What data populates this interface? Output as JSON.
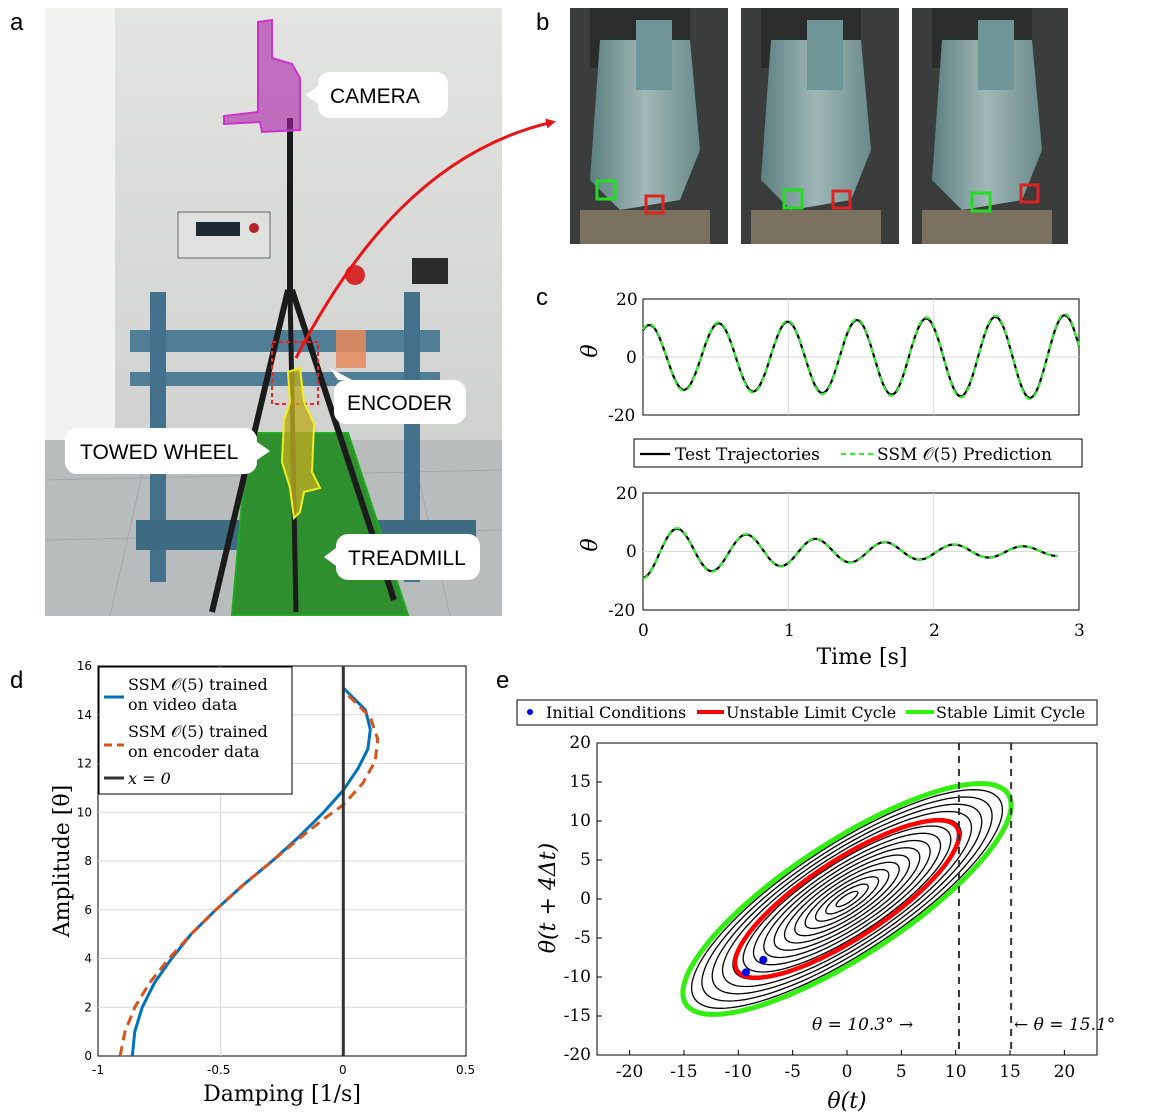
{
  "panels": {
    "a": "a",
    "b": "b",
    "c": "c",
    "d": "d",
    "e": "e"
  },
  "photo_labels": {
    "camera": "CAMERA",
    "encoder": "ENCODER",
    "towed_wheel": "TOWED WHEEL",
    "treadmill": "TREADMILL"
  },
  "colors": {
    "black": "#000000",
    "green_dash": "#33ee33",
    "blue": "#0072bd",
    "orange": "#d95319",
    "red": "#ff0000",
    "green": "#33ee11",
    "ic_blue": "#0000ee",
    "grid": "#d9d9d9",
    "camera_highlight": "#aa22aa",
    "wheel_highlight": "#dddd22",
    "treadmill_highlight": "#22aa22"
  },
  "chart_data": [
    {
      "id": "c-top",
      "type": "line",
      "ylabel": "θ",
      "xlabel": "",
      "xlim": [
        0,
        3
      ],
      "ylim": [
        -20,
        20
      ],
      "yticks": [
        "20",
        "0",
        "-20"
      ],
      "grid": true,
      "series": [
        {
          "name": "Test Trajectories",
          "style": "solid",
          "signal": {
            "a0": 11.0,
            "a1": 14.5,
            "freq": 2.1,
            "phase": 1.0
          }
        },
        {
          "name": "SSM 𝒪(5) Prediction",
          "style": "dashed",
          "signal": {
            "a0": 11.0,
            "a1": 14.5,
            "freq": 2.1,
            "phase": 1.0
          }
        }
      ]
    },
    {
      "id": "c-bottom",
      "type": "line",
      "ylabel": "θ",
      "xlabel": "Time [s]",
      "xlim": [
        0,
        3
      ],
      "ylim": [
        -20,
        20
      ],
      "xticks": [
        "0",
        "1",
        "2",
        "3"
      ],
      "yticks": [
        "20",
        "0",
        "-20"
      ],
      "grid": true,
      "series": [
        {
          "name": "Test Trajectories",
          "style": "solid",
          "signal": {
            "a0": 9.0,
            "decay": 0.62,
            "freq": 2.1,
            "phase": -1.5708,
            "t_end": 2.85
          }
        },
        {
          "name": "SSM 𝒪(5) Prediction",
          "style": "dashed",
          "signal": {
            "a0": 9.0,
            "decay": 0.62,
            "freq": 2.1,
            "phase": -1.5708,
            "t_end": 2.85
          }
        }
      ]
    },
    {
      "id": "d",
      "type": "line",
      "xlabel": "Damping [1/s]",
      "ylabel": "Amplitude [θ]",
      "xlim": [
        -1,
        0.5
      ],
      "ylim": [
        0,
        16
      ],
      "xticks": [
        "-1",
        "-0.5",
        "0",
        "0.5"
      ],
      "yticks": [
        "0",
        "2",
        "4",
        "6",
        "8",
        "10",
        "12",
        "14",
        "16"
      ],
      "grid": true,
      "legend": [
        {
          "line1": "SSM 𝒪(5) trained",
          "line2": "on video data"
        },
        {
          "line1": "SSM 𝒪(5) trained",
          "line2": "on encoder data"
        },
        {
          "line1": "x = 0",
          "line2": ""
        }
      ],
      "series": [
        {
          "name": "SSM 𝒪(5) trained on video data",
          "x": [
            -0.86,
            -0.85,
            -0.82,
            -0.77,
            -0.7,
            -0.62,
            -0.52,
            -0.41,
            -0.29,
            -0.18,
            -0.08,
            0.0,
            0.06,
            0.1,
            0.11,
            0.09,
            0.0
          ],
          "y": [
            0,
            1,
            2,
            3,
            4,
            5,
            6,
            7,
            8,
            9,
            10,
            10.9,
            11.8,
            12.6,
            13.4,
            14.2,
            15.1
          ]
        },
        {
          "name": "SSM 𝒪(5) trained on encoder data",
          "x": [
            -0.91,
            -0.89,
            -0.85,
            -0.79,
            -0.71,
            -0.62,
            -0.52,
            -0.41,
            -0.29,
            -0.17,
            -0.07,
            0.0,
            0.08,
            0.13,
            0.14,
            0.11,
            0.02
          ],
          "y": [
            0,
            1,
            2,
            3,
            4,
            5,
            6,
            7,
            8,
            9,
            9.8,
            10.3,
            11.2,
            12.1,
            13.0,
            13.9,
            14.8
          ]
        },
        {
          "name": "x = 0",
          "x": [
            0,
            0
          ],
          "y": [
            0,
            16
          ]
        }
      ]
    },
    {
      "id": "e",
      "type": "line",
      "xlabel": "θ(t)",
      "ylabel": "θ(t + 4Δt)",
      "xlim": [
        -23,
        23
      ],
      "ylim": [
        -20,
        20
      ],
      "xticks": [
        "-20",
        "-15",
        "-10",
        "-5",
        "0",
        "5",
        "10",
        "15",
        "20"
      ],
      "yticks": [
        "20",
        "15",
        "10",
        "5",
        "0",
        "-5",
        "-10",
        "-15",
        "-20"
      ],
      "grid": false,
      "legend": [
        "Initial Conditions",
        "Unstable Limit Cycle",
        "Stable Limit Cycle"
      ],
      "series": [
        {
          "name": "Initial Conditions",
          "x": [
            -9.3,
            -7.7
          ],
          "y": [
            -9.4,
            -7.8
          ]
        },
        {
          "name": "Unstable Limit Cycle",
          "amplitude": 10.3
        },
        {
          "name": "Stable Limit Cycle",
          "amplitude": 15.1
        }
      ],
      "annotations": [
        {
          "text": "θ = 10.3° →",
          "x": 10.3
        },
        {
          "text": "← θ = 15.1°",
          "x": 15.1
        }
      ]
    }
  ]
}
